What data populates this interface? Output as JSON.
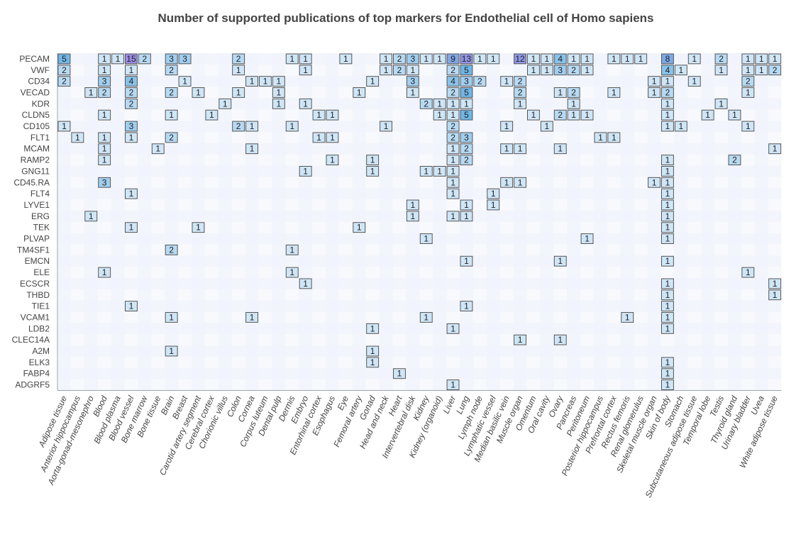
{
  "chart_data": {
    "type": "heatmap",
    "title": "Number of supported publications of top markers for Endothelial cell of Homo sapiens",
    "markers": [
      "PECAM",
      "VWF",
      "CD34",
      "VECAD",
      "KDR",
      "CLDN5",
      "CD105",
      "FLT1",
      "MCAM",
      "RAMP2",
      "GNG11",
      "CD45.RA",
      "FLT4",
      "LYVE1",
      "ERG",
      "TEK",
      "PLVAP",
      "TM4SF1",
      "EMCN",
      "ELE",
      "ECSCR",
      "THBD",
      "TIE1",
      "VCAM1",
      "LDB2",
      "CLEC14A",
      "A2M",
      "ELK3",
      "FABP4",
      "ADGRF5"
    ],
    "tissues": [
      "Adipose tissue",
      "Anterior hippocampus",
      "Aorta-gonad-mesonephro",
      "Blood",
      "Blood plasma",
      "Blood vessel",
      "Bone marrow",
      "Bone tissue",
      "Brain",
      "Breast",
      "Carotid artery segment",
      "Cerebral cortex",
      "Chorionic villus",
      "Colon",
      "Cornea",
      "Corpus luteum",
      "Dental pulp",
      "Dermis",
      "Embryo",
      "Entorhinal cortex",
      "Esophagus",
      "Eye",
      "Femoral artery",
      "Gonad",
      "Head and neck",
      "Heart",
      "Intervertebral disk",
      "Kidney",
      "Kidney (organoid)",
      "Liver",
      "Lung",
      "Lymph node",
      "Lymphatic vessel",
      "Median basilic vein",
      "Muscle organ",
      "Omentum",
      "Oral cavity",
      "Ovary",
      "Pancreas",
      "Peritoneum",
      "Posterior hippocampus",
      "Prefrontal cortex",
      "Rectus femoris",
      "Renal glomerulus",
      "Skeletal muscle organ",
      "Skin of body",
      "Stomach",
      "Subcutaneous adipose tissue",
      "Temporal lobe",
      "Testis",
      "Thyroid gland",
      "Urinary bladder",
      "Uvea",
      "White adipose tissue"
    ],
    "cells": [
      [
        "PECAM",
        "Adipose tissue",
        5
      ],
      [
        "PECAM",
        "Blood",
        1
      ],
      [
        "PECAM",
        "Blood plasma",
        1
      ],
      [
        "PECAM",
        "Blood vessel",
        15
      ],
      [
        "PECAM",
        "Bone marrow",
        2
      ],
      [
        "PECAM",
        "Brain",
        3
      ],
      [
        "PECAM",
        "Breast",
        3
      ],
      [
        "PECAM",
        "Colon",
        2
      ],
      [
        "PECAM",
        "Dermis",
        1
      ],
      [
        "PECAM",
        "Embryo",
        1
      ],
      [
        "PECAM",
        "Eye",
        1
      ],
      [
        "PECAM",
        "Head and neck",
        1
      ],
      [
        "PECAM",
        "Heart",
        2
      ],
      [
        "PECAM",
        "Intervertebral disk",
        3
      ],
      [
        "PECAM",
        "Kidney",
        1
      ],
      [
        "PECAM",
        "Kidney (organoid)",
        1
      ],
      [
        "PECAM",
        "Liver",
        9
      ],
      [
        "PECAM",
        "Lung",
        13
      ],
      [
        "PECAM",
        "Lymph node",
        1
      ],
      [
        "PECAM",
        "Lymphatic vessel",
        1
      ],
      [
        "PECAM",
        "Muscle organ",
        12
      ],
      [
        "PECAM",
        "Omentum",
        1
      ],
      [
        "PECAM",
        "Oral cavity",
        1
      ],
      [
        "PECAM",
        "Ovary",
        4
      ],
      [
        "PECAM",
        "Pancreas",
        1
      ],
      [
        "PECAM",
        "Peritoneum",
        1
      ],
      [
        "PECAM",
        "Prefrontal cortex",
        1
      ],
      [
        "PECAM",
        "Rectus femoris",
        1
      ],
      [
        "PECAM",
        "Renal glomerulus",
        1
      ],
      [
        "PECAM",
        "Skin of body",
        8
      ],
      [
        "PECAM",
        "Subcutaneous adipose tissue",
        1
      ],
      [
        "PECAM",
        "Testis",
        2
      ],
      [
        "PECAM",
        "Urinary bladder",
        1
      ],
      [
        "PECAM",
        "Uvea",
        1
      ],
      [
        "PECAM",
        "White adipose tissue",
        1
      ],
      [
        "VWF",
        "Adipose tissue",
        2
      ],
      [
        "VWF",
        "Blood",
        1
      ],
      [
        "VWF",
        "Blood vessel",
        1
      ],
      [
        "VWF",
        "Brain",
        2
      ],
      [
        "VWF",
        "Colon",
        1
      ],
      [
        "VWF",
        "Embryo",
        1
      ],
      [
        "VWF",
        "Head and neck",
        1
      ],
      [
        "VWF",
        "Heart",
        2
      ],
      [
        "VWF",
        "Intervertebral disk",
        1
      ],
      [
        "VWF",
        "Liver",
        2
      ],
      [
        "VWF",
        "Lung",
        5
      ],
      [
        "VWF",
        "Omentum",
        1
      ],
      [
        "VWF",
        "Oral cavity",
        1
      ],
      [
        "VWF",
        "Ovary",
        3
      ],
      [
        "VWF",
        "Pancreas",
        2
      ],
      [
        "VWF",
        "Peritoneum",
        1
      ],
      [
        "VWF",
        "Skin of body",
        4
      ],
      [
        "VWF",
        "Stomach",
        1
      ],
      [
        "VWF",
        "Testis",
        1
      ],
      [
        "VWF",
        "Urinary bladder",
        1
      ],
      [
        "VWF",
        "Uvea",
        1
      ],
      [
        "VWF",
        "White adipose tissue",
        2
      ],
      [
        "CD34",
        "Adipose tissue",
        2
      ],
      [
        "CD34",
        "Blood",
        3
      ],
      [
        "CD34",
        "Blood vessel",
        4
      ],
      [
        "CD34",
        "Breast",
        1
      ],
      [
        "CD34",
        "Cornea",
        1
      ],
      [
        "CD34",
        "Corpus luteum",
        1
      ],
      [
        "CD34",
        "Dental pulp",
        1
      ],
      [
        "CD34",
        "Gonad",
        1
      ],
      [
        "CD34",
        "Intervertebral disk",
        3
      ],
      [
        "CD34",
        "Liver",
        4
      ],
      [
        "CD34",
        "Lung",
        3
      ],
      [
        "CD34",
        "Lymph node",
        2
      ],
      [
        "CD34",
        "Median basilic vein",
        1
      ],
      [
        "CD34",
        "Muscle organ",
        2
      ],
      [
        "CD34",
        "Skeletal muscle organ",
        1
      ],
      [
        "CD34",
        "Skin of body",
        1
      ],
      [
        "CD34",
        "Subcutaneous adipose tissue",
        1
      ],
      [
        "CD34",
        "Urinary bladder",
        2
      ],
      [
        "VECAD",
        "Aorta-gonad-mesonephro",
        1
      ],
      [
        "VECAD",
        "Blood",
        2
      ],
      [
        "VECAD",
        "Blood vessel",
        2
      ],
      [
        "VECAD",
        "Brain",
        2
      ],
      [
        "VECAD",
        "Carotid artery segment",
        1
      ],
      [
        "VECAD",
        "Colon",
        1
      ],
      [
        "VECAD",
        "Dental pulp",
        1
      ],
      [
        "VECAD",
        "Femoral artery",
        1
      ],
      [
        "VECAD",
        "Intervertebral disk",
        1
      ],
      [
        "VECAD",
        "Liver",
        2
      ],
      [
        "VECAD",
        "Lung",
        5
      ],
      [
        "VECAD",
        "Muscle organ",
        2
      ],
      [
        "VECAD",
        "Ovary",
        1
      ],
      [
        "VECAD",
        "Pancreas",
        2
      ],
      [
        "VECAD",
        "Prefrontal cortex",
        1
      ],
      [
        "VECAD",
        "Skeletal muscle organ",
        1
      ],
      [
        "VECAD",
        "Skin of body",
        2
      ],
      [
        "VECAD",
        "Urinary bladder",
        1
      ],
      [
        "KDR",
        "Blood vessel",
        2
      ],
      [
        "KDR",
        "Chorionic villus",
        1
      ],
      [
        "KDR",
        "Dental pulp",
        1
      ],
      [
        "KDR",
        "Embryo",
        1
      ],
      [
        "KDR",
        "Kidney",
        2
      ],
      [
        "KDR",
        "Kidney (organoid)",
        1
      ],
      [
        "KDR",
        "Liver",
        1
      ],
      [
        "KDR",
        "Lung",
        1
      ],
      [
        "KDR",
        "Muscle organ",
        1
      ],
      [
        "KDR",
        "Pancreas",
        1
      ],
      [
        "KDR",
        "Skin of body",
        1
      ],
      [
        "KDR",
        "Testis",
        1
      ],
      [
        "CLDN5",
        "Blood",
        1
      ],
      [
        "CLDN5",
        "Brain",
        1
      ],
      [
        "CLDN5",
        "Cerebral cortex",
        1
      ],
      [
        "CLDN5",
        "Entorhinal cortex",
        1
      ],
      [
        "CLDN5",
        "Esophagus",
        1
      ],
      [
        "CLDN5",
        "Kidney (organoid)",
        1
      ],
      [
        "CLDN5",
        "Liver",
        1
      ],
      [
        "CLDN5",
        "Lung",
        5
      ],
      [
        "CLDN5",
        "Omentum",
        1
      ],
      [
        "CLDN5",
        "Ovary",
        2
      ],
      [
        "CLDN5",
        "Pancreas",
        1
      ],
      [
        "CLDN5",
        "Peritoneum",
        1
      ],
      [
        "CLDN5",
        "Skin of body",
        1
      ],
      [
        "CLDN5",
        "Temporal lobe",
        1
      ],
      [
        "CLDN5",
        "Thyroid gland",
        1
      ],
      [
        "CD105",
        "Adipose tissue",
        1
      ],
      [
        "CD105",
        "Blood vessel",
        3
      ],
      [
        "CD105",
        "Colon",
        2
      ],
      [
        "CD105",
        "Cornea",
        1
      ],
      [
        "CD105",
        "Dermis",
        1
      ],
      [
        "CD105",
        "Head and neck",
        1
      ],
      [
        "CD105",
        "Liver",
        2
      ],
      [
        "CD105",
        "Median basilic vein",
        1
      ],
      [
        "CD105",
        "Oral cavity",
        1
      ],
      [
        "CD105",
        "Skin of body",
        1
      ],
      [
        "CD105",
        "Stomach",
        1
      ],
      [
        "CD105",
        "Urinary bladder",
        1
      ],
      [
        "FLT1",
        "Anterior hippocampus",
        1
      ],
      [
        "FLT1",
        "Blood",
        1
      ],
      [
        "FLT1",
        "Blood vessel",
        1
      ],
      [
        "FLT1",
        "Brain",
        2
      ],
      [
        "FLT1",
        "Entorhinal cortex",
        1
      ],
      [
        "FLT1",
        "Esophagus",
        1
      ],
      [
        "FLT1",
        "Liver",
        2
      ],
      [
        "FLT1",
        "Lung",
        3
      ],
      [
        "FLT1",
        "Posterior hippocampus",
        1
      ],
      [
        "FLT1",
        "Prefrontal cortex",
        1
      ],
      [
        "MCAM",
        "Blood",
        1
      ],
      [
        "MCAM",
        "Bone tissue",
        1
      ],
      [
        "MCAM",
        "Cornea",
        1
      ],
      [
        "MCAM",
        "Liver",
        1
      ],
      [
        "MCAM",
        "Lung",
        2
      ],
      [
        "MCAM",
        "Median basilic vein",
        1
      ],
      [
        "MCAM",
        "Muscle organ",
        1
      ],
      [
        "MCAM",
        "Ovary",
        1
      ],
      [
        "MCAM",
        "White adipose tissue",
        1
      ],
      [
        "RAMP2",
        "Blood",
        1
      ],
      [
        "RAMP2",
        "Esophagus",
        1
      ],
      [
        "RAMP2",
        "Gonad",
        1
      ],
      [
        "RAMP2",
        "Liver",
        1
      ],
      [
        "RAMP2",
        "Lung",
        2
      ],
      [
        "RAMP2",
        "Skin of body",
        1
      ],
      [
        "RAMP2",
        "Thyroid gland",
        2
      ],
      [
        "GNG11",
        "Embryo",
        1
      ],
      [
        "GNG11",
        "Gonad",
        1
      ],
      [
        "GNG11",
        "Kidney",
        1
      ],
      [
        "GNG11",
        "Kidney (organoid)",
        1
      ],
      [
        "GNG11",
        "Liver",
        1
      ],
      [
        "GNG11",
        "Skin of body",
        1
      ],
      [
        "CD45.RA",
        "Blood",
        3
      ],
      [
        "CD45.RA",
        "Liver",
        1
      ],
      [
        "CD45.RA",
        "Median basilic vein",
        1
      ],
      [
        "CD45.RA",
        "Muscle organ",
        1
      ],
      [
        "CD45.RA",
        "Skeletal muscle organ",
        1
      ],
      [
        "CD45.RA",
        "Skin of body",
        1
      ],
      [
        "FLT4",
        "Blood vessel",
        1
      ],
      [
        "FLT4",
        "Liver",
        1
      ],
      [
        "FLT4",
        "Lymphatic vessel",
        1
      ],
      [
        "FLT4",
        "Skin of body",
        1
      ],
      [
        "LYVE1",
        "Intervertebral disk",
        1
      ],
      [
        "LYVE1",
        "Lung",
        1
      ],
      [
        "LYVE1",
        "Lymphatic vessel",
        1
      ],
      [
        "LYVE1",
        "Skin of body",
        1
      ],
      [
        "ERG",
        "Aorta-gonad-mesonephro",
        1
      ],
      [
        "ERG",
        "Intervertebral disk",
        1
      ],
      [
        "ERG",
        "Liver",
        1
      ],
      [
        "ERG",
        "Lung",
        1
      ],
      [
        "ERG",
        "Skin of body",
        1
      ],
      [
        "TEK",
        "Blood vessel",
        1
      ],
      [
        "TEK",
        "Carotid artery segment",
        1
      ],
      [
        "TEK",
        "Femoral artery",
        1
      ],
      [
        "TEK",
        "Skin of body",
        1
      ],
      [
        "PLVAP",
        "Kidney",
        1
      ],
      [
        "PLVAP",
        "Peritoneum",
        1
      ],
      [
        "PLVAP",
        "Skin of body",
        1
      ],
      [
        "TM4SF1",
        "Brain",
        2
      ],
      [
        "TM4SF1",
        "Dermis",
        1
      ],
      [
        "EMCN",
        "Lung",
        1
      ],
      [
        "EMCN",
        "Ovary",
        1
      ],
      [
        "EMCN",
        "Skin of body",
        1
      ],
      [
        "ELE",
        "Blood",
        1
      ],
      [
        "ELE",
        "Dermis",
        1
      ],
      [
        "ELE",
        "Urinary bladder",
        1
      ],
      [
        "ECSCR",
        "Embryo",
        1
      ],
      [
        "ECSCR",
        "Skin of body",
        1
      ],
      [
        "ECSCR",
        "White adipose tissue",
        1
      ],
      [
        "THBD",
        "Skin of body",
        1
      ],
      [
        "THBD",
        "White adipose tissue",
        1
      ],
      [
        "TIE1",
        "Blood vessel",
        1
      ],
      [
        "TIE1",
        "Lung",
        1
      ],
      [
        "TIE1",
        "Skin of body",
        1
      ],
      [
        "VCAM1",
        "Brain",
        1
      ],
      [
        "VCAM1",
        "Cornea",
        1
      ],
      [
        "VCAM1",
        "Kidney",
        1
      ],
      [
        "VCAM1",
        "Rectus femoris",
        1
      ],
      [
        "VCAM1",
        "Skin of body",
        1
      ],
      [
        "LDB2",
        "Gonad",
        1
      ],
      [
        "LDB2",
        "Liver",
        1
      ],
      [
        "LDB2",
        "Skin of body",
        1
      ],
      [
        "CLEC14A",
        "Muscle organ",
        1
      ],
      [
        "CLEC14A",
        "Ovary",
        1
      ],
      [
        "A2M",
        "Brain",
        1
      ],
      [
        "A2M",
        "Gonad",
        1
      ],
      [
        "ELK3",
        "Gonad",
        1
      ],
      [
        "ELK3",
        "Skin of body",
        1
      ],
      [
        "FABP4",
        "Heart",
        1
      ],
      [
        "FABP4",
        "Skin of body",
        1
      ],
      [
        "ADGRF5",
        "Liver",
        1
      ],
      [
        "ADGRF5",
        "Skin of body",
        1
      ]
    ],
    "color_min": "#cfe6f7",
    "color_mid": "#6fb6e6",
    "color_max": "#9b8be6",
    "cell_border": "#555555",
    "stripe_a": "#eef2fb",
    "stripe_b": "#f8f9fd",
    "grid": "off",
    "legend": "none"
  }
}
